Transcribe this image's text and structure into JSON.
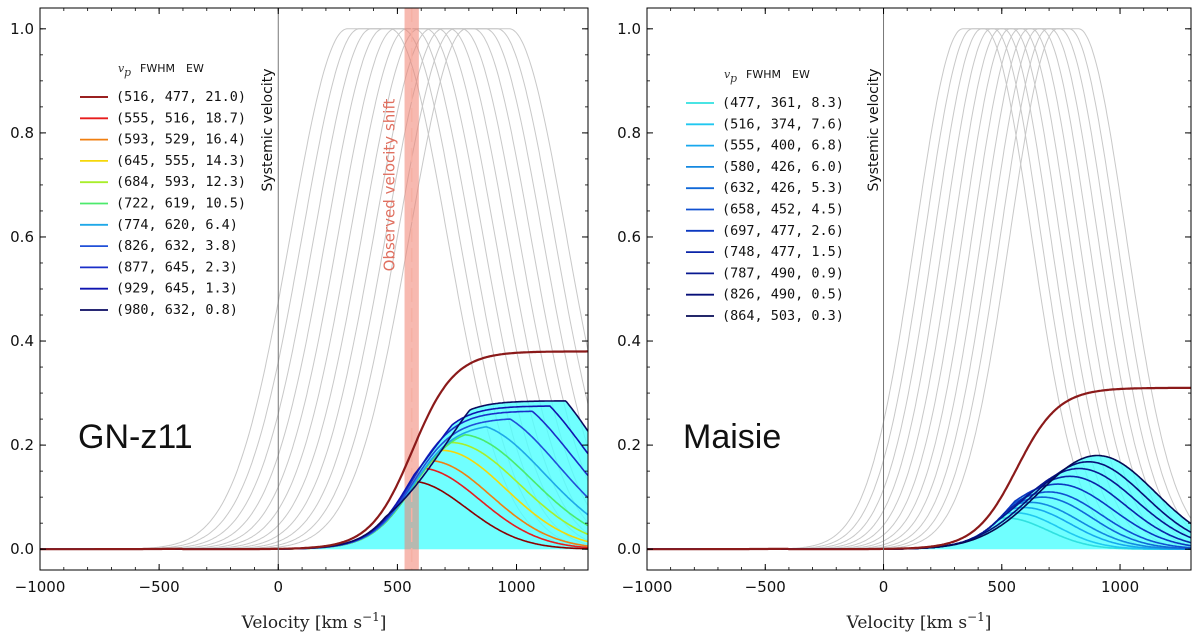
{
  "chart_data": [
    {
      "type": "line",
      "panel": "left",
      "title": "",
      "label": "GN-z11",
      "xlabel": "Velocity [km s",
      "xlabel_sup": "−1",
      "xlabel_tail": "]",
      "ylabel": "",
      "xlim": [
        -1000,
        1300
      ],
      "ylim": [
        -0.04,
        1.04
      ],
      "xticks": [
        -1000,
        -500,
        0,
        500,
        1000
      ],
      "xtick_labels": [
        "−1000",
        "−500",
        "0",
        "500",
        "1000"
      ],
      "yticks": [
        0.0,
        0.2,
        0.4,
        0.6,
        0.8,
        1.0
      ],
      "ytick_labels": [
        "0.0",
        "0.2",
        "0.4",
        "0.6",
        "0.8",
        "1.0"
      ],
      "legend_header": {
        "vp": "v",
        "vp_sub": "p",
        "fwhm": "FWHM",
        "ew": "EW"
      },
      "legend_placement": "upper-left",
      "systemic_label": "Systemic velocity",
      "systemic_x": 0,
      "shift_label": "Observed velocity shift",
      "shift_band": [
        530,
        590
      ],
      "shift_center": 560,
      "envelope_color": "#8b1a1a",
      "fill_color": "#00ffff",
      "series": [
        {
          "vp": 516,
          "fwhm": 477,
          "ew": 21.0,
          "label": "(516, 477, 21.0)",
          "color": "#8b0000"
        },
        {
          "vp": 555,
          "fwhm": 516,
          "ew": 18.7,
          "label": "(555, 516, 18.7)",
          "color": "#e81c1c"
        },
        {
          "vp": 593,
          "fwhm": 529,
          "ew": 16.4,
          "label": "(593, 529, 16.4)",
          "color": "#f07f10"
        },
        {
          "vp": 645,
          "fwhm": 555,
          "ew": 14.3,
          "label": "(645, 555, 14.3)",
          "color": "#f5d70a"
        },
        {
          "vp": 684,
          "fwhm": 593,
          "ew": 12.3,
          "label": "(684, 593, 12.3)",
          "color": "#a8ee2a"
        },
        {
          "vp": 722,
          "fwhm": 619,
          "ew": 10.5,
          "label": "(722, 619, 10.5)",
          "color": "#4cea6c"
        },
        {
          "vp": 774,
          "fwhm": 620,
          "ew": 6.4,
          "label": "(774, 620, 6.4)",
          "color": "#1fa8e8"
        },
        {
          "vp": 826,
          "fwhm": 632,
          "ew": 3.8,
          "label": "(826, 632, 3.8)",
          "color": "#2050d8"
        },
        {
          "vp": 877,
          "fwhm": 645,
          "ew": 2.3,
          "label": "(877, 645, 2.3)",
          "color": "#1a2ec8"
        },
        {
          "vp": 929,
          "fwhm": 645,
          "ew": 1.3,
          "label": "(929, 645, 1.3)",
          "color": "#0f14b0"
        },
        {
          "vp": 980,
          "fwhm": 632,
          "ew": 0.8,
          "label": "(980, 632, 0.8)",
          "color": "#0a0a60"
        }
      ],
      "grey_templates": {
        "centers": [
          380,
          430,
          480,
          530,
          580,
          630,
          680,
          730,
          780,
          830,
          880
        ],
        "fwhm": 560,
        "peak": 1.0,
        "plateau": 180
      },
      "envelope_at_xmax": 0.38,
      "model_peaks": [
        0.13,
        0.155,
        0.17,
        0.19,
        0.205,
        0.22,
        0.235,
        0.25,
        0.265,
        0.275,
        0.285
      ]
    },
    {
      "type": "line",
      "panel": "right",
      "title": "",
      "label": "Maisie",
      "xlabel": "Velocity [km s",
      "xlabel_sup": "−1",
      "xlabel_tail": "]",
      "ylabel": "",
      "xlim": [
        -1000,
        1300
      ],
      "ylim": [
        -0.04,
        1.04
      ],
      "xticks": [
        -1000,
        -500,
        0,
        500,
        1000
      ],
      "xtick_labels": [
        "−1000",
        "−500",
        "0",
        "500",
        "1000"
      ],
      "yticks": [
        0.0,
        0.2,
        0.4,
        0.6,
        0.8,
        1.0
      ],
      "ytick_labels": [
        "0.0",
        "0.2",
        "0.4",
        "0.6",
        "0.8",
        "1.0"
      ],
      "legend_header": {
        "vp": "v",
        "vp_sub": "p",
        "fwhm": "FWHM",
        "ew": "EW"
      },
      "legend_placement": "upper-left",
      "systemic_label": "Systemic velocity",
      "systemic_x": 0,
      "envelope_color": "#8b1a1a",
      "fill_color": "#00ffff",
      "series": [
        {
          "vp": 477,
          "fwhm": 361,
          "ew": 8.3,
          "label": "(477, 361, 8.3)",
          "color": "#30e0e0"
        },
        {
          "vp": 516,
          "fwhm": 374,
          "ew": 7.6,
          "label": "(516, 374, 7.6)",
          "color": "#20c8f0"
        },
        {
          "vp": 555,
          "fwhm": 400,
          "ew": 6.8,
          "label": "(555, 400, 6.8)",
          "color": "#18a8ee"
        },
        {
          "vp": 580,
          "fwhm": 426,
          "ew": 6.0,
          "label": "(580, 426, 6.0)",
          "color": "#1488e0"
        },
        {
          "vp": 632,
          "fwhm": 426,
          "ew": 5.3,
          "label": "(632, 426, 5.3)",
          "color": "#1068d8"
        },
        {
          "vp": 658,
          "fwhm": 452,
          "ew": 4.5,
          "label": "(658, 452, 4.5)",
          "color": "#1050d0"
        },
        {
          "vp": 697,
          "fwhm": 477,
          "ew": 2.6,
          "label": "(697, 477, 2.6)",
          "color": "#0c38c0"
        },
        {
          "vp": 748,
          "fwhm": 477,
          "ew": 1.5,
          "label": "(748, 477, 1.5)",
          "color": "#0a24a8"
        },
        {
          "vp": 787,
          "fwhm": 490,
          "ew": 0.9,
          "label": "(787, 490, 0.9)",
          "color": "#081890"
        },
        {
          "vp": 826,
          "fwhm": 490,
          "ew": 0.5,
          "label": "(826, 490, 0.5)",
          "color": "#060f78"
        },
        {
          "vp": 864,
          "fwhm": 503,
          "ew": 0.3,
          "label": "(864, 503, 0.3)",
          "color": "#050a55"
        }
      ],
      "grey_templates": {
        "centers": [
          380,
          420,
          460,
          500,
          540,
          580,
          620,
          660,
          700,
          740,
          780
        ],
        "fwhm": 470,
        "peak": 1.0,
        "plateau": 90
      },
      "envelope_at_xmax": 0.31,
      "model_peaks": [
        0.06,
        0.07,
        0.08,
        0.09,
        0.1,
        0.11,
        0.125,
        0.14,
        0.155,
        0.168,
        0.18
      ]
    }
  ]
}
